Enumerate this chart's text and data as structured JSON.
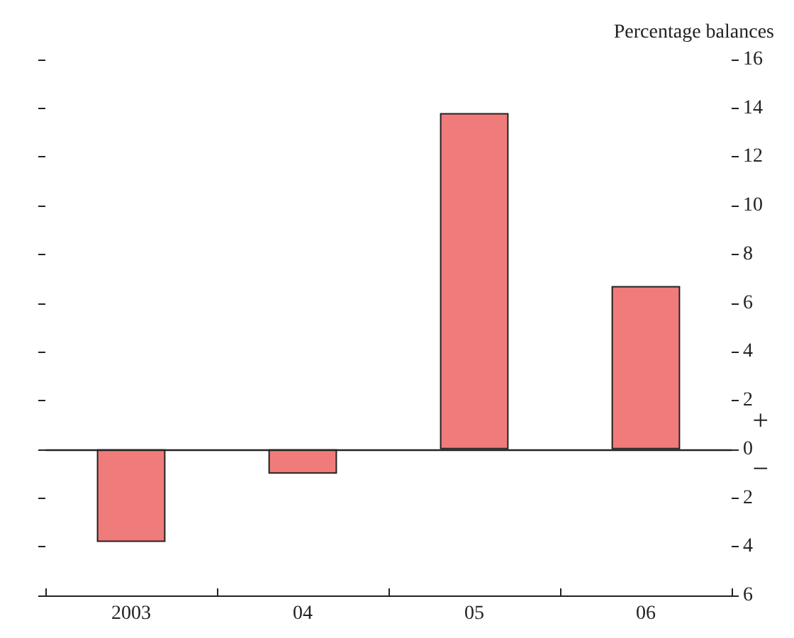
{
  "chart_data": {
    "type": "bar",
    "ylabel": "Percentage balances",
    "categories": [
      "2003",
      "04",
      "05",
      "06"
    ],
    "values": [
      -3.8,
      -1.0,
      13.8,
      6.7
    ],
    "color": "#f07b7b",
    "ylim": [
      -6,
      16
    ],
    "yticks": [
      {
        "value": -6,
        "label": "6"
      },
      {
        "value": -4,
        "label": "4"
      },
      {
        "value": -2,
        "label": "2"
      },
      0,
      2,
      4,
      6,
      8,
      10,
      12,
      14,
      16
    ],
    "ref_lines": [
      {
        "axis": "y",
        "value": 0
      }
    ],
    "annotations": [
      "+",
      "−"
    ],
    "grid": false
  }
}
